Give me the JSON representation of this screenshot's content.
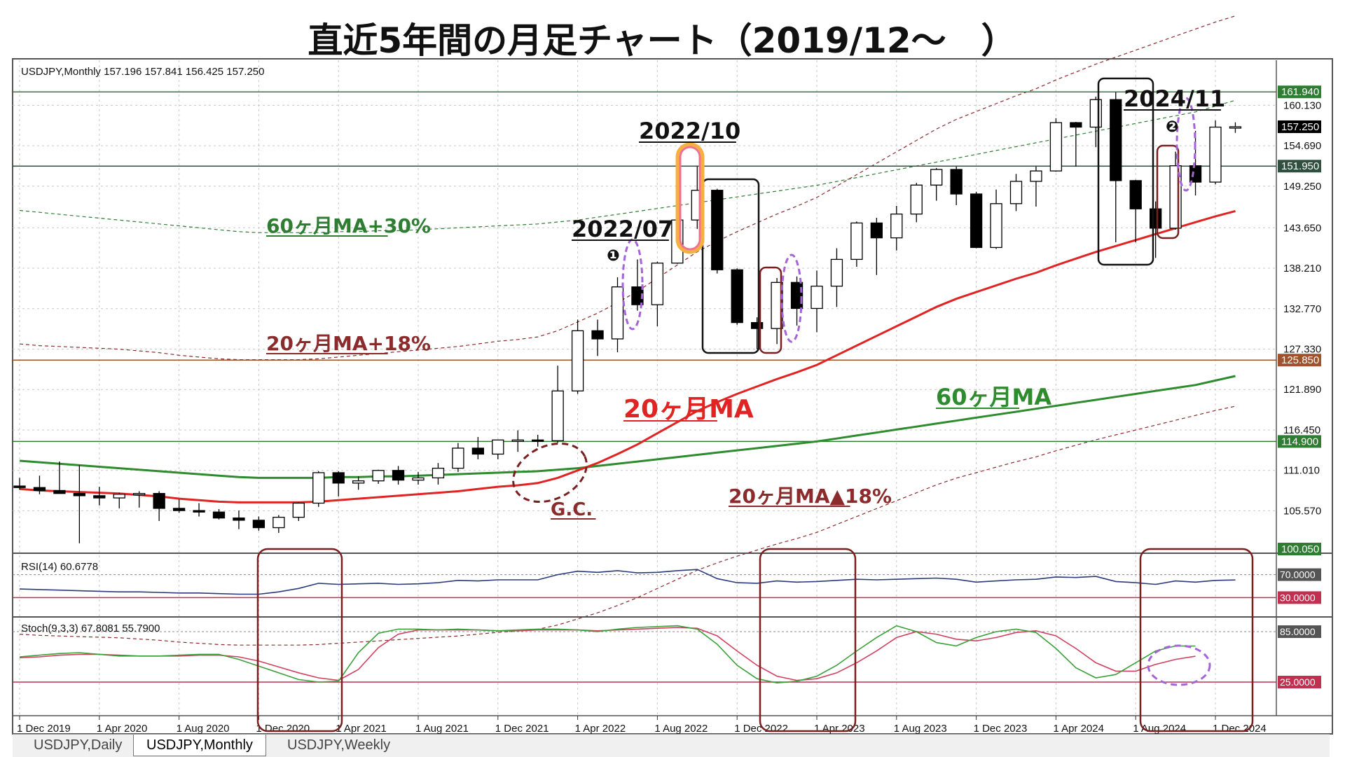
{
  "title": "直近5年間の月足チャート（2019/12～　）",
  "window_header": "USDJPY,Monthly  157.196 157.841 156.425 157.250",
  "tabs": [
    {
      "label": "USDJPY,Daily",
      "active": false
    },
    {
      "label": "USDJPY,Monthly",
      "active": true
    },
    {
      "label": "USDJPY,Weekly",
      "active": false
    }
  ],
  "colors": {
    "ma20": "#e02424",
    "ma60": "#2e8b2e",
    "band_red": "#8b2b2b",
    "band_green": "#2e7d32",
    "hline_green": "#2e7d32",
    "hline_brown": "#a0522d",
    "rsi_line": "#2b3a7a",
    "stoch_main": "#3aa03a",
    "stoch_signal": "#d04060",
    "annotation_box": "#7a1f1f",
    "oval_purple": "#a463d6",
    "oval_pink": "#f07090",
    "oval_orange": "#f5b040"
  },
  "chart_data": [
    {
      "type": "candlestick",
      "instrument": "USDJPY",
      "timeframe": "Monthly",
      "ylim": [
        100.05,
        166.2
      ],
      "price_ticks": [
        "160.130",
        "154.690",
        "149.250",
        "143.650",
        "138.210",
        "132.770",
        "127.330",
        "121.890",
        "116.450",
        "111.010",
        "105.570"
      ],
      "x_ticks": [
        "1 Dec 2019",
        "1 Apr 2020",
        "1 Aug 2020",
        "1 Dec 2020",
        "1 Apr 2021",
        "1 Aug 2021",
        "1 Dec 2021",
        "1 Apr 2022",
        "1 Aug 2022",
        "1 Dec 2022",
        "1 Apr 2023",
        "1 Aug 2023",
        "1 Dec 2023",
        "1 Apr 2024",
        "1 Aug 2024",
        "1 Dec 2024"
      ],
      "candles": [
        {
          "o": 108.9,
          "h": 110.0,
          "l": 108.4,
          "c": 108.7
        },
        {
          "o": 108.7,
          "h": 110.3,
          "l": 107.8,
          "c": 108.3
        },
        {
          "o": 108.3,
          "h": 112.2,
          "l": 107.9,
          "c": 107.9
        },
        {
          "o": 107.9,
          "h": 111.7,
          "l": 101.2,
          "c": 107.6
        },
        {
          "o": 107.6,
          "h": 108.8,
          "l": 106.3,
          "c": 107.3
        },
        {
          "o": 107.3,
          "h": 108.0,
          "l": 105.9,
          "c": 107.8
        },
        {
          "o": 107.8,
          "h": 108.2,
          "l": 106.0,
          "c": 107.9
        },
        {
          "o": 107.9,
          "h": 108.2,
          "l": 104.2,
          "c": 105.9
        },
        {
          "o": 105.9,
          "h": 107.1,
          "l": 105.3,
          "c": 105.6
        },
        {
          "o": 105.6,
          "h": 106.6,
          "l": 104.8,
          "c": 105.4
        },
        {
          "o": 105.4,
          "h": 105.8,
          "l": 104.4,
          "c": 104.6
        },
        {
          "o": 104.6,
          "h": 105.6,
          "l": 103.1,
          "c": 104.3
        },
        {
          "o": 104.3,
          "h": 104.8,
          "l": 102.9,
          "c": 103.3
        },
        {
          "o": 103.3,
          "h": 105.0,
          "l": 102.6,
          "c": 104.7
        },
        {
          "o": 104.7,
          "h": 106.7,
          "l": 104.2,
          "c": 106.6
        },
        {
          "o": 106.6,
          "h": 110.9,
          "l": 106.1,
          "c": 110.7
        },
        {
          "o": 110.7,
          "h": 110.9,
          "l": 107.5,
          "c": 109.3
        },
        {
          "o": 109.3,
          "h": 110.2,
          "l": 108.4,
          "c": 109.6
        },
        {
          "o": 109.6,
          "h": 111.1,
          "l": 109.2,
          "c": 111.0
        },
        {
          "o": 111.0,
          "h": 111.6,
          "l": 109.1,
          "c": 109.7
        },
        {
          "o": 109.7,
          "h": 110.8,
          "l": 109.1,
          "c": 110.0
        },
        {
          "o": 110.0,
          "h": 112.0,
          "l": 109.1,
          "c": 111.3
        },
        {
          "o": 111.3,
          "h": 114.7,
          "l": 110.8,
          "c": 114.0
        },
        {
          "o": 114.0,
          "h": 115.5,
          "l": 112.5,
          "c": 113.2
        },
        {
          "o": 113.2,
          "h": 115.1,
          "l": 112.5,
          "c": 115.1
        },
        {
          "o": 115.1,
          "h": 116.4,
          "l": 113.5,
          "c": 115.1
        },
        {
          "o": 115.1,
          "h": 115.8,
          "l": 114.2,
          "c": 115.0
        },
        {
          "o": 115.0,
          "h": 125.1,
          "l": 114.7,
          "c": 121.7
        },
        {
          "o": 121.7,
          "h": 131.3,
          "l": 121.3,
          "c": 129.8
        },
        {
          "o": 129.8,
          "h": 131.3,
          "l": 126.4,
          "c": 128.7
        },
        {
          "o": 128.7,
          "h": 137.0,
          "l": 126.9,
          "c": 135.7
        },
        {
          "o": 135.7,
          "h": 139.4,
          "l": 132.5,
          "c": 133.3
        },
        {
          "o": 133.3,
          "h": 139.1,
          "l": 130.4,
          "c": 138.9
        },
        {
          "o": 138.9,
          "h": 145.9,
          "l": 138.8,
          "c": 144.7
        },
        {
          "o": 144.7,
          "h": 151.9,
          "l": 143.5,
          "c": 148.7
        },
        {
          "o": 148.7,
          "h": 148.9,
          "l": 137.5,
          "c": 138.0
        },
        {
          "o": 138.0,
          "h": 138.2,
          "l": 130.6,
          "c": 130.9
        },
        {
          "o": 130.9,
          "h": 131.6,
          "l": 127.3,
          "c": 130.1
        },
        {
          "o": 130.1,
          "h": 136.9,
          "l": 128.0,
          "c": 136.3
        },
        {
          "o": 136.3,
          "h": 137.1,
          "l": 130.5,
          "c": 132.8
        },
        {
          "o": 132.8,
          "h": 137.9,
          "l": 129.6,
          "c": 135.8
        },
        {
          "o": 135.8,
          "h": 140.9,
          "l": 133.0,
          "c": 139.4
        },
        {
          "o": 139.4,
          "h": 144.5,
          "l": 138.4,
          "c": 144.3
        },
        {
          "o": 144.3,
          "h": 145.0,
          "l": 137.3,
          "c": 142.3
        },
        {
          "o": 142.3,
          "h": 146.6,
          "l": 140.6,
          "c": 145.5
        },
        {
          "o": 145.5,
          "h": 149.7,
          "l": 144.4,
          "c": 149.4
        },
        {
          "o": 149.4,
          "h": 151.7,
          "l": 147.3,
          "c": 151.5
        },
        {
          "o": 151.5,
          "h": 151.9,
          "l": 146.7,
          "c": 148.2
        },
        {
          "o": 148.2,
          "h": 148.5,
          "l": 140.9,
          "c": 141.0
        },
        {
          "o": 141.0,
          "h": 148.8,
          "l": 140.8,
          "c": 146.9
        },
        {
          "o": 146.9,
          "h": 150.9,
          "l": 145.9,
          "c": 149.9
        },
        {
          "o": 149.9,
          "h": 151.9,
          "l": 146.5,
          "c": 151.3
        },
        {
          "o": 151.3,
          "h": 158.4,
          "l": 151.2,
          "c": 157.8
        },
        {
          "o": 157.8,
          "h": 157.9,
          "l": 151.9,
          "c": 157.2
        },
        {
          "o": 157.2,
          "h": 161.3,
          "l": 154.5,
          "c": 160.9
        },
        {
          "o": 160.9,
          "h": 161.9,
          "l": 141.7,
          "c": 150.0
        },
        {
          "o": 150.0,
          "h": 150.1,
          "l": 141.7,
          "c": 146.2
        },
        {
          "o": 146.2,
          "h": 147.2,
          "l": 139.6,
          "c": 143.6
        },
        {
          "o": 143.6,
          "h": 153.9,
          "l": 143.4,
          "c": 152.0
        },
        {
          "o": 152.0,
          "h": 156.7,
          "l": 148.0,
          "c": 149.8
        },
        {
          "o": 149.8,
          "h": 158.1,
          "l": 149.5,
          "c": 157.2
        },
        {
          "o": 157.196,
          "h": 157.841,
          "l": 156.425,
          "c": 157.25
        }
      ],
      "ma20": [
        108.5,
        108.3,
        108.2,
        108.1,
        108.0,
        107.9,
        107.7,
        107.5,
        107.2,
        107.0,
        106.8,
        106.7,
        106.7,
        106.7,
        106.7,
        106.8,
        107.0,
        107.2,
        107.4,
        107.6,
        107.8,
        108.0,
        108.2,
        108.5,
        108.8,
        109.0,
        109.3,
        110.0,
        111.0,
        112.0,
        113.2,
        114.5,
        116.0,
        117.5,
        119.0,
        120.2,
        121.3,
        122.3,
        123.3,
        124.2,
        125.2,
        126.5,
        127.8,
        129.1,
        130.4,
        131.7,
        133.0,
        134.1,
        135.0,
        135.9,
        136.8,
        137.6,
        138.6,
        139.5,
        140.4,
        141.2,
        142.0,
        142.8,
        143.6,
        144.4,
        145.2,
        145.9
      ],
      "ma60": [
        112.3,
        112.1,
        111.9,
        111.7,
        111.5,
        111.3,
        111.1,
        110.9,
        110.7,
        110.5,
        110.3,
        110.1,
        110.0,
        110.0,
        110.0,
        110.0,
        110.1,
        110.1,
        110.2,
        110.2,
        110.3,
        110.4,
        110.5,
        110.6,
        110.7,
        110.8,
        110.9,
        111.1,
        111.3,
        111.6,
        111.9,
        112.2,
        112.5,
        112.8,
        113.1,
        113.4,
        113.7,
        114.0,
        114.3,
        114.6,
        114.9,
        115.3,
        115.7,
        116.1,
        116.5,
        116.9,
        117.3,
        117.7,
        118.1,
        118.5,
        118.9,
        119.3,
        119.7,
        120.1,
        120.5,
        120.9,
        121.3,
        121.7,
        122.1,
        122.5,
        123.1,
        123.7
      ],
      "horizontal_lines": [
        {
          "label": "161.940",
          "value": 161.94,
          "color": "hline_green"
        },
        {
          "label": "151.950",
          "value": 151.95,
          "color": "hline_dark"
        },
        {
          "label": "125.850",
          "value": 125.85,
          "color": "hline_brown"
        },
        {
          "label": "114.900",
          "value": 114.9,
          "color": "hline_green"
        }
      ],
      "current_price_label": "157.250",
      "bottom_label": "100.050"
    },
    {
      "type": "line",
      "indicator_label": "RSI(14) 60.6778",
      "levels": [
        "70.0000",
        "30.0000"
      ],
      "ylim": [
        0,
        100
      ],
      "values": [
        45,
        44,
        43,
        42,
        41,
        40,
        40,
        39,
        38,
        38,
        37,
        36,
        36,
        40,
        46,
        55,
        53,
        54,
        55,
        53,
        54,
        56,
        60,
        59,
        61,
        61,
        61,
        70,
        76,
        74,
        77,
        73,
        74,
        77,
        79,
        63,
        56,
        55,
        59,
        57,
        58,
        60,
        62,
        61,
        62,
        63,
        64,
        62,
        57,
        59,
        61,
        62,
        66,
        65,
        67,
        58,
        56,
        53,
        59,
        57,
        60,
        60.68
      ]
    },
    {
      "type": "line",
      "indicator_label": "Stoch(9,3,3) 67.8081 55.7900",
      "levels": [
        "85.0000",
        "25.0000"
      ],
      "ylim": [
        0,
        100
      ],
      "series": [
        {
          "name": "main",
          "values": [
            55,
            57,
            59,
            60,
            58,
            56,
            56,
            56,
            57,
            58,
            58,
            52,
            44,
            36,
            28,
            25,
            26,
            60,
            83,
            88,
            88,
            87,
            88,
            87,
            86,
            87,
            88,
            88,
            87,
            85,
            88,
            90,
            91,
            92,
            88,
            70,
            45,
            29,
            24,
            26,
            32,
            45,
            62,
            78,
            92,
            85,
            72,
            68,
            78,
            85,
            88,
            84,
            65,
            42,
            30,
            34,
            48,
            62,
            68,
            67.81
          ]
        },
        {
          "name": "signal",
          "values": [
            54,
            55,
            57,
            58,
            58,
            57,
            56,
            56,
            56,
            57,
            57,
            55,
            50,
            43,
            36,
            30,
            27,
            40,
            66,
            82,
            87,
            87,
            87,
            87,
            86,
            86,
            87,
            87,
            87,
            86,
            87,
            88,
            89,
            90,
            89,
            80,
            62,
            45,
            32,
            27,
            29,
            36,
            48,
            62,
            78,
            85,
            82,
            76,
            74,
            78,
            84,
            86,
            80,
            65,
            48,
            38,
            38,
            46,
            52,
            55.79
          ]
        }
      ]
    }
  ],
  "annotations": [
    {
      "text": "2022/10"
    },
    {
      "text": "2022/07"
    },
    {
      "text": "2024/11"
    },
    {
      "text": "❶"
    },
    {
      "text": "❷"
    },
    {
      "text": "60ヶ月MA+30%"
    },
    {
      "text": "20ヶ月MA+18%"
    },
    {
      "text": "20ヶ月MA"
    },
    {
      "text": "60ヶ月MA"
    },
    {
      "text": "20ヶ月MA▲18%"
    },
    {
      "text": "G.C."
    }
  ]
}
